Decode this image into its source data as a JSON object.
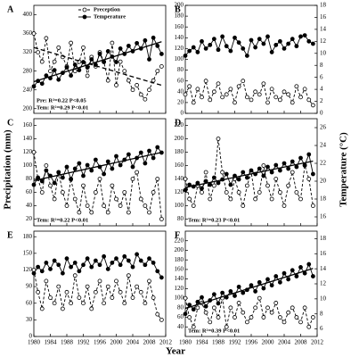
{
  "figure": {
    "ylabel": "Precipitation (mm)",
    "y2label": "Temperature (°C)",
    "xlabel": "Year"
  },
  "chart_data": [
    {
      "type": "line",
      "label": "A",
      "legend": "top",
      "x": [
        1980,
        1981,
        1982,
        1983,
        1984,
        1985,
        1986,
        1987,
        1988,
        1989,
        1990,
        1991,
        1992,
        1993,
        1994,
        1995,
        1996,
        1997,
        1998,
        1999,
        2000,
        2001,
        2002,
        2003,
        2004,
        2005,
        2006,
        2007,
        2008,
        2009,
        2010,
        2011
      ],
      "xlim": [
        1980,
        2012
      ],
      "xticks": [
        1980,
        1984,
        1988,
        1992,
        1996,
        2000,
        2004,
        2008,
        2012
      ],
      "ylim": [
        190,
        420
      ],
      "yticks": [
        200,
        240,
        280,
        320,
        360,
        400
      ],
      "y2lim": [
        7,
        15
      ],
      "series": [
        {
          "name": "Preception",
          "color": "#000000",
          "marker": "open",
          "line": "dashed",
          "values": [
            360,
            320,
            300,
            350,
            280,
            300,
            330,
            310,
            290,
            340,
            280,
            300,
            330,
            270,
            310,
            290,
            320,
            300,
            260,
            340,
            250,
            300,
            280,
            260,
            240,
            250,
            230,
            220,
            240,
            260,
            280,
            290
          ]
        },
        {
          "name": "Temperature",
          "color": "#000000",
          "marker": "filled",
          "line": "solid",
          "axis": "y2",
          "values": [
            9.0,
            9.4,
            9.2,
            9.8,
            9.6,
            10.2,
            9.5,
            10.0,
            10.4,
            9.8,
            10.6,
            10.2,
            10.8,
            10.4,
            11.0,
            10.6,
            11.4,
            10.8,
            11.6,
            11.2,
            10.8,
            11.8,
            11.4,
            12.0,
            11.6,
            12.2,
            11.8,
            12.4,
            11.0,
            12.6,
            12.0,
            11.4
          ]
        }
      ],
      "trend": [
        0,
        1
      ],
      "annotations": [
        "Pre: R²=0.22 P<0.05",
        "Tem: R²=0.29 P<0.01"
      ]
    },
    {
      "type": "line",
      "label": "B",
      "x": [
        1980,
        1981,
        1982,
        1983,
        1984,
        1985,
        1986,
        1987,
        1988,
        1989,
        1990,
        1991,
        1992,
        1993,
        1994,
        1995,
        1996,
        1997,
        1998,
        1999,
        2000,
        2001,
        2002,
        2003,
        2004,
        2005,
        2006,
        2007,
        2008,
        2009,
        2010,
        2011
      ],
      "xlim": [
        1980,
        2012
      ],
      "xticks": [
        1980,
        1984,
        1988,
        1992,
        1996,
        2000,
        2004,
        2008,
        2012
      ],
      "ylim": [
        0,
        200
      ],
      "yticks": [
        0,
        20,
        40,
        60,
        80,
        100,
        120,
        140,
        160,
        180,
        200
      ],
      "y2lim": [
        0,
        18
      ],
      "y2ticks": [
        0,
        2,
        4,
        6,
        8,
        10,
        12,
        14,
        16,
        18
      ],
      "series": [
        {
          "color": "#000000",
          "marker": "open",
          "line": "dashed",
          "values": [
            35,
            50,
            20,
            45,
            30,
            60,
            25,
            40,
            55,
            30,
            35,
            45,
            20,
            50,
            60,
            30,
            25,
            40,
            35,
            55,
            20,
            45,
            30,
            25,
            40,
            35,
            20,
            50,
            30,
            45,
            25,
            15
          ]
        },
        {
          "color": "#000000",
          "marker": "filled",
          "line": "solid",
          "axis": "y2",
          "values": [
            9.6,
            10.4,
            11.0,
            10.2,
            12.0,
            10.8,
            11.4,
            12.4,
            10.6,
            12.8,
            11.2,
            10.4,
            12.6,
            11.8,
            10.8,
            9.6,
            12.2,
            11.0,
            12.4,
            11.6,
            12.8,
            10.2,
            11.4,
            12.0,
            10.8,
            11.6,
            12.4,
            11.2,
            12.8,
            13.0,
            12.0,
            11.6
          ]
        }
      ],
      "trend": [],
      "annotations": []
    },
    {
      "type": "line",
      "label": "C",
      "x": [
        1980,
        1981,
        1982,
        1983,
        1984,
        1985,
        1986,
        1987,
        1988,
        1989,
        1990,
        1991,
        1992,
        1993,
        1994,
        1995,
        1996,
        1997,
        1998,
        1999,
        2000,
        2001,
        2002,
        2003,
        2004,
        2005,
        2006,
        2007,
        2008,
        2009,
        2010,
        2011
      ],
      "xlim": [
        1980,
        2012
      ],
      "xticks": [
        1980,
        1984,
        1988,
        1992,
        1996,
        2000,
        2004,
        2008,
        2012
      ],
      "ylim": [
        10,
        170
      ],
      "yticks": [
        20,
        40,
        60,
        80,
        100,
        120,
        140,
        160
      ],
      "y2lim": [
        14,
        26
      ],
      "series": [
        {
          "color": "#000000",
          "marker": "open",
          "line": "dashed",
          "values": [
            120,
            80,
            60,
            100,
            70,
            50,
            90,
            60,
            40,
            80,
            50,
            30,
            70,
            40,
            30,
            60,
            80,
            40,
            30,
            70,
            50,
            40,
            60,
            30,
            80,
            90,
            50,
            40,
            30,
            60,
            80,
            20
          ]
        },
        {
          "color": "#000000",
          "marker": "filled",
          "line": "solid",
          "axis": "y2",
          "values": [
            18.6,
            19.4,
            19.0,
            20.2,
            19.6,
            18.8,
            20.0,
            19.4,
            20.6,
            19.2,
            20.4,
            21.0,
            19.6,
            20.8,
            20.2,
            21.4,
            20.6,
            19.8,
            21.2,
            20.4,
            21.8,
            20.8,
            21.4,
            22.0,
            20.6,
            21.6,
            22.2,
            21.0,
            22.4,
            21.6,
            22.8,
            22.2
          ]
        }
      ],
      "trend": [
        1
      ],
      "annotations": [
        "Tem: R²=0.22 P<0.01"
      ]
    },
    {
      "type": "line",
      "label": "D",
      "x": [
        1980,
        1981,
        1982,
        1983,
        1984,
        1985,
        1986,
        1987,
        1988,
        1989,
        1990,
        1991,
        1992,
        1993,
        1994,
        1995,
        1996,
        1997,
        1998,
        1999,
        2000,
        2001,
        2002,
        2003,
        2004,
        2005,
        2006,
        2007,
        2008,
        2009,
        2010,
        2011
      ],
      "xlim": [
        1980,
        2012
      ],
      "xticks": [
        1980,
        1984,
        1988,
        1992,
        1996,
        2000,
        2004,
        2008,
        2012
      ],
      "ylim": [
        70,
        230
      ],
      "yticks": [
        80,
        100,
        120,
        140,
        160,
        180,
        200,
        220
      ],
      "y2lim": [
        15,
        27
      ],
      "y2ticks": [
        16,
        18,
        20,
        22,
        24,
        26
      ],
      "series": [
        {
          "color": "#000000",
          "marker": "open",
          "line": "dashed",
          "values": [
            140,
            110,
            100,
            130,
            120,
            150,
            110,
            130,
            200,
            150,
            120,
            110,
            140,
            120,
            100,
            130,
            150,
            110,
            120,
            160,
            130,
            110,
            140,
            120,
            100,
            130,
            150,
            120,
            110,
            160,
            140,
            100
          ]
        },
        {
          "color": "#000000",
          "marker": "filled",
          "line": "solid",
          "axis": "y2",
          "values": [
            19.0,
            19.6,
            19.4,
            19.8,
            19.2,
            20.0,
            19.6,
            20.4,
            19.8,
            20.2,
            20.8,
            19.6,
            20.6,
            20.2,
            21.0,
            20.4,
            21.2,
            20.8,
            21.4,
            20.6,
            21.6,
            21.0,
            21.8,
            21.2,
            22.0,
            21.4,
            22.2,
            21.6,
            22.6,
            21.8,
            23.0,
            20.8
          ]
        }
      ],
      "trend": [
        1
      ],
      "annotations": [
        "Tem: R²=0.23 P<0.01"
      ]
    },
    {
      "type": "line",
      "label": "E",
      "x": [
        1980,
        1981,
        1982,
        1983,
        1984,
        1985,
        1986,
        1987,
        1988,
        1989,
        1990,
        1991,
        1992,
        1993,
        1994,
        1995,
        1996,
        1997,
        1998,
        1999,
        2000,
        2001,
        2002,
        2003,
        2004,
        2005,
        2006,
        2007,
        2008,
        2009,
        2010,
        2011
      ],
      "xlim": [
        1980,
        2012
      ],
      "xticks": [
        1980,
        1984,
        1988,
        1992,
        1996,
        2000,
        2004,
        2008,
        2012
      ],
      "ylim": [
        0,
        190
      ],
      "yticks": [
        0,
        30,
        60,
        90,
        120,
        150,
        180
      ],
      "y2lim": [
        6,
        16
      ],
      "series": [
        {
          "color": "#000000",
          "marker": "open",
          "line": "dashed",
          "values": [
            120,
            80,
            50,
            100,
            70,
            60,
            90,
            50,
            80,
            60,
            110,
            70,
            60,
            90,
            50,
            80,
            100,
            60,
            90,
            70,
            100,
            80,
            60,
            110,
            70,
            90,
            80,
            60,
            100,
            70,
            40,
            30
          ]
        },
        {
          "color": "#000000",
          "marker": "filled",
          "line": "solid",
          "axis": "y2",
          "values": [
            12.0,
            12.6,
            12.2,
            13.0,
            12.4,
            13.2,
            12.8,
            12.0,
            13.4,
            12.6,
            13.0,
            12.2,
            12.8,
            13.4,
            12.6,
            13.2,
            12.8,
            13.6,
            12.4,
            13.0,
            13.4,
            12.8,
            13.6,
            13.2,
            12.6,
            13.8,
            13.2,
            12.8,
            13.4,
            13.0,
            12.2,
            11.6
          ]
        }
      ],
      "trend": [],
      "annotations": []
    },
    {
      "type": "line",
      "label": "F",
      "x": [
        1980,
        1981,
        1982,
        1983,
        1984,
        1985,
        1986,
        1987,
        1988,
        1989,
        1990,
        1991,
        1992,
        1993,
        1994,
        1995,
        1996,
        1997,
        1998,
        1999,
        2000,
        2001,
        2002,
        2003,
        2004,
        2005,
        2006,
        2007,
        2008,
        2009,
        2010,
        2011
      ],
      "xlim": [
        1980,
        2012
      ],
      "xticks": [
        1980,
        1984,
        1988,
        1992,
        1996,
        2000,
        2004,
        2008,
        2012
      ],
      "ylim": [
        20,
        240
      ],
      "yticks": [
        40,
        60,
        80,
        100,
        120,
        140,
        160,
        180,
        200,
        220
      ],
      "y2lim": [
        5,
        19
      ],
      "y2ticks": [
        6,
        8,
        10,
        12,
        14,
        16,
        18
      ],
      "series": [
        {
          "color": "#000000",
          "marker": "open",
          "line": "dashed",
          "values": [
            100,
            60,
            40,
            80,
            90,
            70,
            50,
            80,
            60,
            100,
            40,
            80,
            60,
            90,
            70,
            50,
            60,
            80,
            100,
            60,
            80,
            70,
            90,
            60,
            50,
            70,
            80,
            60,
            50,
            80,
            40,
            60
          ]
        },
        {
          "color": "#000000",
          "marker": "filled",
          "line": "solid",
          "axis": "y2",
          "values": [
            8.0,
            9.2,
            8.6,
            9.6,
            10.2,
            9.0,
            9.8,
            10.6,
            9.4,
            10.8,
            10.2,
            11.0,
            10.4,
            11.6,
            10.8,
            11.2,
            11.8,
            11.0,
            12.2,
            11.4,
            12.6,
            11.8,
            13.0,
            12.2,
            13.4,
            12.6,
            13.8,
            13.0,
            14.2,
            13.4,
            14.6,
            13.0
          ]
        }
      ],
      "trend": [
        1
      ],
      "annotations": [
        "Tem: R²=0.39 P<0.01"
      ]
    }
  ]
}
